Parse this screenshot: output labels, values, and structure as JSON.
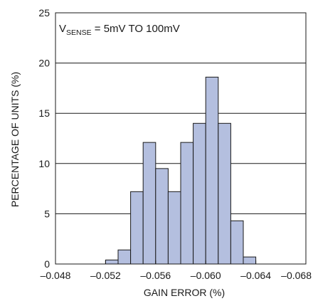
{
  "chart_data": {
    "type": "bar",
    "histogram": true,
    "bin_edges": [
      -0.052,
      -0.053,
      -0.054,
      -0.055,
      -0.056,
      -0.057,
      -0.058,
      -0.059,
      -0.06,
      -0.061,
      -0.062,
      -0.063,
      -0.064,
      -0.065
    ],
    "values": [
      0.4,
      1.4,
      7.2,
      12.1,
      9.5,
      7.2,
      12.1,
      14.0,
      18.6,
      14.0,
      4.3,
      0.7,
      0.0
    ],
    "xlabel": "GAIN ERROR (%)",
    "ylabel": "PERCENTAGE OF UNITS (%)",
    "annotation": {
      "prefix": "V",
      "subscript": "SENSE",
      "suffix": " = 5mV TO 100mV"
    },
    "xlim": [
      -0.048,
      -0.068
    ],
    "ylim": [
      0,
      25
    ],
    "x_ticks": [
      -0.048,
      -0.052,
      -0.056,
      -0.06,
      -0.064,
      -0.068
    ],
    "x_tick_labels": [
      "–0.048",
      "–0.052",
      "–0.056",
      "–0.060",
      "–0.064",
      "–0.068"
    ],
    "y_ticks": [
      0,
      5,
      10,
      15,
      20,
      25
    ],
    "y_tick_labels": [
      "0",
      "5",
      "10",
      "15",
      "20",
      "25"
    ],
    "grid": {
      "horizontal": true,
      "vertical": false
    },
    "colors": {
      "bar_fill": "#b4bfdf",
      "bar_stroke": "#1a1a1a",
      "grid": "#1a1a1a",
      "frame": "#1a1a1a"
    }
  }
}
